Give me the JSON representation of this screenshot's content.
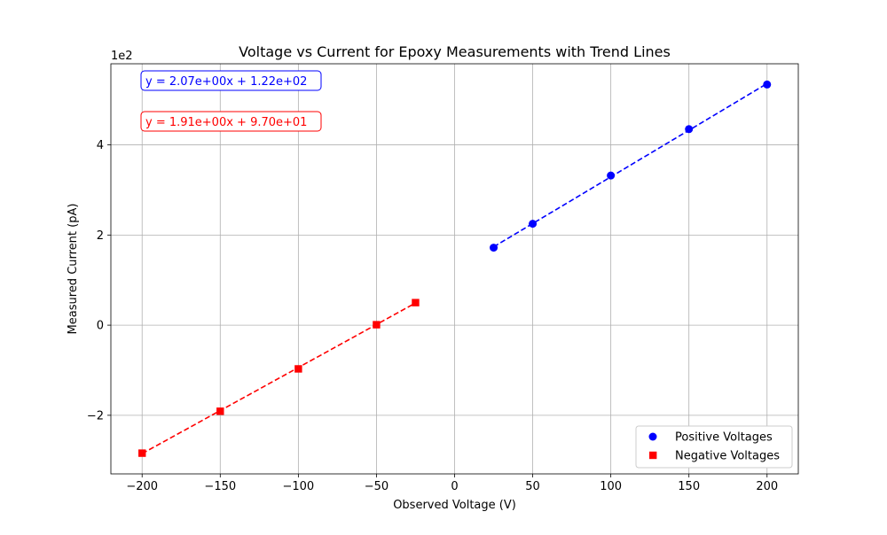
{
  "chart_data": {
    "type": "scatter",
    "title": "Voltage vs Current for Epoxy Measurements with Trend Lines",
    "xlabel": "Observed Voltage (V)",
    "ylabel": "Measured Current (pA)",
    "y_scale_label": "1e2",
    "xlim": [
      -220,
      220
    ],
    "ylim": [
      -330,
      580
    ],
    "xticks": [
      -200,
      -150,
      -100,
      -50,
      0,
      50,
      100,
      150,
      200
    ],
    "xtick_labels": [
      "−200",
      "−150",
      "−100",
      "−50",
      "0",
      "50",
      "100",
      "150",
      "200"
    ],
    "yticks": [
      -200,
      0,
      200,
      400
    ],
    "ytick_labels": [
      "−2",
      "0",
      "2",
      "4"
    ],
    "grid": true,
    "legend_position": "lower-right",
    "series": [
      {
        "name": "Positive Voltages",
        "marker": "circle",
        "color": "#0000ff",
        "x": [
          25,
          50,
          100,
          150,
          200
        ],
        "y": [
          172,
          225,
          332,
          435,
          534
        ],
        "trend": {
          "slope": 2.07,
          "intercept": 122,
          "label": "y = 2.07e+00x + 1.22e+02"
        }
      },
      {
        "name": "Negative Voltages",
        "marker": "square",
        "color": "#ff0000",
        "x": [
          -200,
          -150,
          -100,
          -50,
          -25
        ],
        "y": [
          -284,
          -191,
          -97,
          1,
          50
        ],
        "trend": {
          "slope": 1.91,
          "intercept": 97,
          "label": "y = 1.91e+00x + 9.70e+01"
        }
      }
    ]
  }
}
